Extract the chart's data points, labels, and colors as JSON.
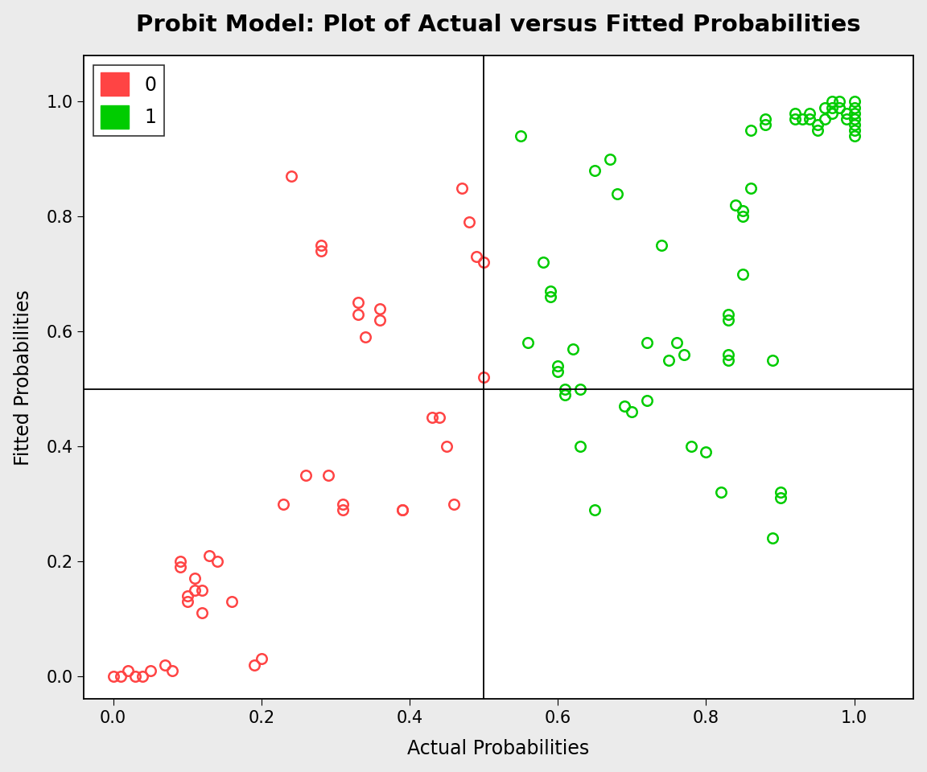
{
  "title": "Probit Model: Plot of Actual versus Fitted Probabilities",
  "xlabel": "Actual Probabilities",
  "ylabel": "Fitted Probabilities",
  "xlim": [
    -0.04,
    1.08
  ],
  "ylim": [
    -0.04,
    1.08
  ],
  "vline": 0.5,
  "hline": 0.5,
  "red_color": "#FF4444",
  "green_color": "#00CC00",
  "red_points": [
    [
      0.0,
      0.0
    ],
    [
      0.01,
      0.0
    ],
    [
      0.02,
      0.01
    ],
    [
      0.03,
      0.0
    ],
    [
      0.04,
      0.0
    ],
    [
      0.05,
      0.01
    ],
    [
      0.07,
      0.02
    ],
    [
      0.08,
      0.01
    ],
    [
      0.09,
      0.2
    ],
    [
      0.09,
      0.19
    ],
    [
      0.1,
      0.13
    ],
    [
      0.1,
      0.14
    ],
    [
      0.11,
      0.15
    ],
    [
      0.11,
      0.17
    ],
    [
      0.12,
      0.11
    ],
    [
      0.12,
      0.15
    ],
    [
      0.13,
      0.21
    ],
    [
      0.14,
      0.2
    ],
    [
      0.16,
      0.13
    ],
    [
      0.19,
      0.02
    ],
    [
      0.2,
      0.03
    ],
    [
      0.23,
      0.3
    ],
    [
      0.24,
      0.87
    ],
    [
      0.26,
      0.35
    ],
    [
      0.28,
      0.75
    ],
    [
      0.28,
      0.74
    ],
    [
      0.29,
      0.35
    ],
    [
      0.31,
      0.3
    ],
    [
      0.31,
      0.29
    ],
    [
      0.33,
      0.65
    ],
    [
      0.33,
      0.63
    ],
    [
      0.34,
      0.59
    ],
    [
      0.36,
      0.64
    ],
    [
      0.36,
      0.62
    ],
    [
      0.39,
      0.29
    ],
    [
      0.39,
      0.29
    ],
    [
      0.43,
      0.45
    ],
    [
      0.44,
      0.45
    ],
    [
      0.45,
      0.4
    ],
    [
      0.46,
      0.3
    ],
    [
      0.47,
      0.85
    ],
    [
      0.48,
      0.79
    ],
    [
      0.49,
      0.73
    ],
    [
      0.5,
      0.52
    ],
    [
      0.5,
      0.72
    ]
  ],
  "green_points": [
    [
      0.55,
      0.94
    ],
    [
      0.56,
      0.58
    ],
    [
      0.58,
      0.72
    ],
    [
      0.59,
      0.67
    ],
    [
      0.59,
      0.66
    ],
    [
      0.6,
      0.54
    ],
    [
      0.6,
      0.53
    ],
    [
      0.61,
      0.5
    ],
    [
      0.61,
      0.49
    ],
    [
      0.62,
      0.57
    ],
    [
      0.63,
      0.4
    ],
    [
      0.63,
      0.5
    ],
    [
      0.65,
      0.29
    ],
    [
      0.65,
      0.88
    ],
    [
      0.67,
      0.9
    ],
    [
      0.68,
      0.84
    ],
    [
      0.69,
      0.47
    ],
    [
      0.7,
      0.46
    ],
    [
      0.72,
      0.58
    ],
    [
      0.72,
      0.48
    ],
    [
      0.74,
      0.75
    ],
    [
      0.75,
      0.55
    ],
    [
      0.76,
      0.58
    ],
    [
      0.77,
      0.56
    ],
    [
      0.78,
      0.4
    ],
    [
      0.8,
      0.39
    ],
    [
      0.82,
      0.32
    ],
    [
      0.83,
      0.55
    ],
    [
      0.83,
      0.56
    ],
    [
      0.83,
      0.62
    ],
    [
      0.83,
      0.63
    ],
    [
      0.84,
      0.82
    ],
    [
      0.85,
      0.8
    ],
    [
      0.85,
      0.7
    ],
    [
      0.85,
      0.81
    ],
    [
      0.86,
      0.85
    ],
    [
      0.86,
      0.95
    ],
    [
      0.88,
      0.97
    ],
    [
      0.88,
      0.96
    ],
    [
      0.89,
      0.55
    ],
    [
      0.89,
      0.24
    ],
    [
      0.9,
      0.31
    ],
    [
      0.9,
      0.32
    ],
    [
      0.92,
      0.97
    ],
    [
      0.92,
      0.98
    ],
    [
      0.93,
      0.97
    ],
    [
      0.94,
      0.97
    ],
    [
      0.94,
      0.98
    ],
    [
      0.95,
      0.96
    ],
    [
      0.95,
      0.95
    ],
    [
      0.96,
      0.99
    ],
    [
      0.96,
      0.97
    ],
    [
      0.97,
      1.0
    ],
    [
      0.97,
      0.99
    ],
    [
      0.97,
      0.98
    ],
    [
      0.98,
      1.0
    ],
    [
      0.98,
      0.99
    ],
    [
      0.99,
      0.98
    ],
    [
      0.99,
      0.97
    ],
    [
      1.0,
      1.0
    ],
    [
      1.0,
      0.99
    ],
    [
      1.0,
      0.98
    ],
    [
      1.0,
      0.97
    ],
    [
      1.0,
      0.96
    ],
    [
      1.0,
      0.95
    ],
    [
      1.0,
      0.94
    ]
  ],
  "title_fontsize": 21,
  "label_fontsize": 17,
  "tick_fontsize": 15,
  "legend_fontsize": 17,
  "marker_size": 9,
  "marker_linewidth": 1.8,
  "fig_bg_color": "#EBEBEB",
  "plot_bg_color": "#FFFFFF"
}
